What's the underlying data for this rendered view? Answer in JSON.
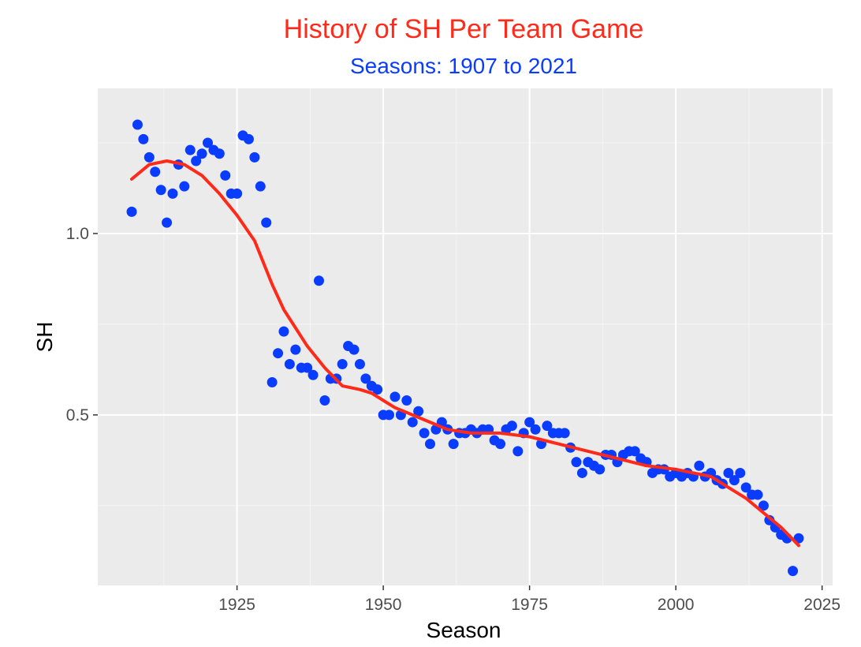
{
  "colors": {
    "title": "#ff2a1a",
    "subtitle": "#0a3cff",
    "points": "#0a3cff",
    "smooth": "#ff2a1a",
    "panel": "#ebebeb",
    "grid_major": "#ffffff",
    "grid_minor": "#f5f5f5"
  },
  "chart_data": {
    "type": "scatter",
    "title": "History of SH Per Team Game",
    "subtitle": "Seasons: 1907 to 2021",
    "xlabel": "Season",
    "ylabel": "SH",
    "xlim": [
      1901.2,
      2026.8
    ],
    "ylim": [
      0.03,
      1.4
    ],
    "x_ticks": [
      1925,
      1950,
      1975,
      2000,
      2025
    ],
    "x_tick_labels": [
      "1925",
      "1950",
      "1975",
      "2000",
      "2025"
    ],
    "y_ticks": [
      0.5,
      1.0
    ],
    "y_tick_labels": [
      "0.5",
      "1.0"
    ],
    "grid": true,
    "series": [
      {
        "kind": "points",
        "x": [
          1907,
          1908,
          1909,
          1910,
          1911,
          1912,
          1913,
          1914,
          1915,
          1916,
          1917,
          1918,
          1919,
          1920,
          1921,
          1922,
          1923,
          1924,
          1925,
          1926,
          1927,
          1928,
          1929,
          1930,
          1931,
          1932,
          1933,
          1934,
          1935,
          1936,
          1937,
          1938,
          1939,
          1940,
          1941,
          1942,
          1943,
          1944,
          1945,
          1946,
          1947,
          1948,
          1949,
          1950,
          1951,
          1952,
          1953,
          1954,
          1955,
          1956,
          1957,
          1958,
          1959,
          1960,
          1961,
          1962,
          1963,
          1964,
          1965,
          1966,
          1967,
          1968,
          1969,
          1970,
          1971,
          1972,
          1973,
          1974,
          1975,
          1976,
          1977,
          1978,
          1979,
          1980,
          1981,
          1982,
          1983,
          1984,
          1985,
          1986,
          1987,
          1988,
          1989,
          1990,
          1991,
          1992,
          1993,
          1994,
          1995,
          1996,
          1997,
          1998,
          1999,
          2000,
          2001,
          2002,
          2003,
          2004,
          2005,
          2006,
          2007,
          2008,
          2009,
          2010,
          2011,
          2012,
          2013,
          2014,
          2015,
          2016,
          2017,
          2018,
          2019,
          2020,
          2021
        ],
        "y": [
          1.06,
          1.3,
          1.26,
          1.21,
          1.17,
          1.12,
          1.03,
          1.11,
          1.19,
          1.13,
          1.23,
          1.2,
          1.22,
          1.25,
          1.23,
          1.22,
          1.16,
          1.11,
          1.11,
          1.27,
          1.26,
          1.21,
          1.13,
          1.03,
          0.59,
          0.67,
          0.73,
          0.64,
          0.68,
          0.63,
          0.63,
          0.61,
          0.87,
          0.54,
          0.6,
          0.6,
          0.64,
          0.69,
          0.68,
          0.64,
          0.6,
          0.58,
          0.57,
          0.5,
          0.5,
          0.55,
          0.5,
          0.54,
          0.48,
          0.51,
          0.45,
          0.42,
          0.46,
          0.48,
          0.46,
          0.42,
          0.45,
          0.45,
          0.46,
          0.45,
          0.46,
          0.46,
          0.43,
          0.42,
          0.46,
          0.47,
          0.4,
          0.45,
          0.48,
          0.46,
          0.42,
          0.47,
          0.45,
          0.45,
          0.45,
          0.41,
          0.37,
          0.34,
          0.37,
          0.36,
          0.35,
          0.39,
          0.39,
          0.37,
          0.39,
          0.4,
          0.4,
          0.38,
          0.37,
          0.34,
          0.35,
          0.35,
          0.33,
          0.34,
          0.33,
          0.34,
          0.33,
          0.36,
          0.33,
          0.34,
          0.32,
          0.31,
          0.34,
          0.32,
          0.34,
          0.3,
          0.28,
          0.28,
          0.25,
          0.21,
          0.19,
          0.17,
          0.16,
          0.07,
          0.16
        ]
      },
      {
        "kind": "smooth",
        "x": [
          1907,
          1910,
          1913,
          1916,
          1919,
          1922,
          1925,
          1928,
          1929,
          1931,
          1933,
          1935,
          1937,
          1940,
          1943,
          1946,
          1948,
          1950,
          1952,
          1955,
          1958,
          1961,
          1965,
          1970,
          1975,
          1980,
          1985,
          1990,
          1995,
          2000,
          2003,
          2006,
          2009,
          2012,
          2015,
          2018,
          2021
        ],
        "y": [
          1.15,
          1.19,
          1.2,
          1.19,
          1.16,
          1.11,
          1.05,
          0.98,
          0.94,
          0.86,
          0.79,
          0.74,
          0.69,
          0.63,
          0.58,
          0.57,
          0.56,
          0.54,
          0.52,
          0.5,
          0.48,
          0.46,
          0.45,
          0.45,
          0.44,
          0.42,
          0.4,
          0.38,
          0.36,
          0.35,
          0.34,
          0.33,
          0.3,
          0.27,
          0.23,
          0.19,
          0.14
        ]
      }
    ]
  }
}
